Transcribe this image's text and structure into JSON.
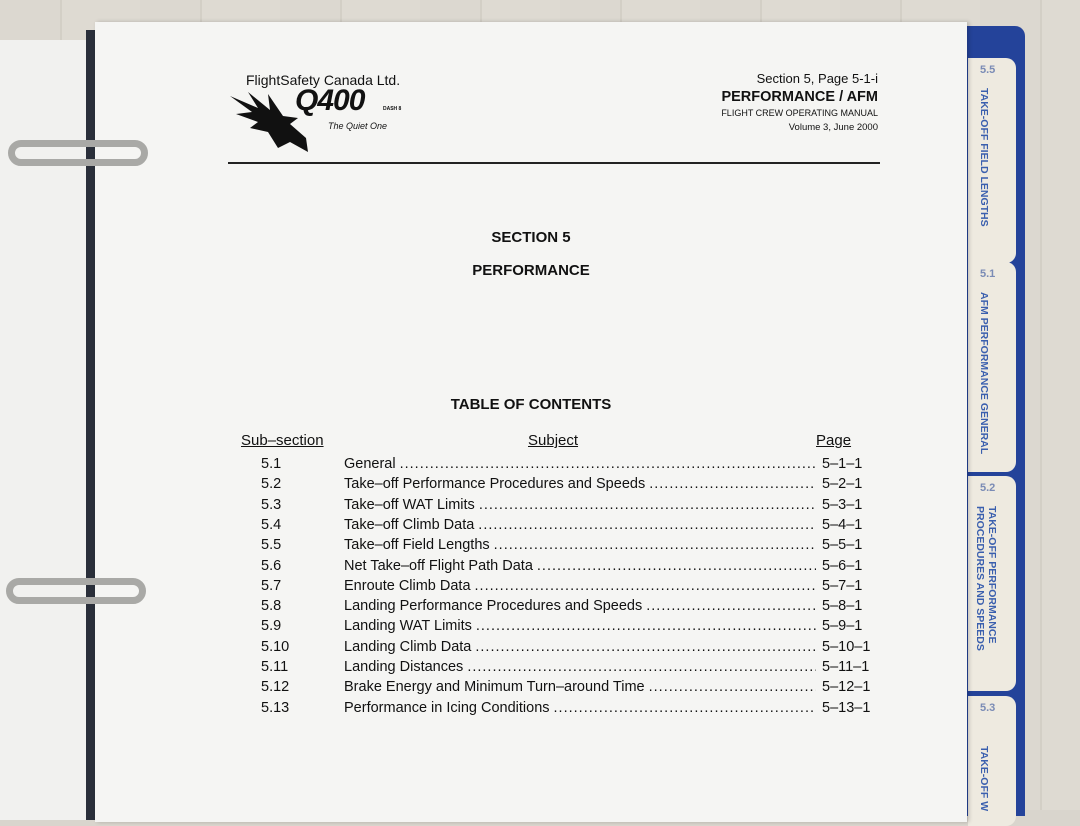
{
  "header": {
    "company": "FlightSafety Canada Ltd.",
    "logo_text": "Q400",
    "logo_sub": "DASH 8",
    "tagline": "The Quiet One",
    "section_page": "Section 5, Page 5-1-i",
    "title": "PERFORMANCE / AFM",
    "manual": "FLIGHT CREW OPERATING MANUAL",
    "volume": "Volume 3, June 2000"
  },
  "section": "SECTION 5",
  "section_title": "PERFORMANCE",
  "toc_title": "TABLE OF CONTENTS",
  "columns": {
    "sub": "Sub–section",
    "subject": "Subject",
    "page": "Page"
  },
  "rows": [
    {
      "n": "5.1",
      "s": "General",
      "p": "5–1–1"
    },
    {
      "n": "5.2",
      "s": "Take–off Performance Procedures and Speeds",
      "p": "5–2–1"
    },
    {
      "n": "5.3",
      "s": "Take–off WAT Limits",
      "p": "5–3–1"
    },
    {
      "n": "5.4",
      "s": "Take–off Climb Data",
      "p": "5–4–1"
    },
    {
      "n": "5.5",
      "s": "Take–off Field Lengths",
      "p": "5–5–1"
    },
    {
      "n": "5.6",
      "s": "Net Take–off Flight Path Data",
      "p": "5–6–1"
    },
    {
      "n": "5.7",
      "s": "Enroute Climb Data",
      "p": "5–7–1"
    },
    {
      "n": "5.8",
      "s": "Landing Performance Procedures and Speeds",
      "p": "5–8–1"
    },
    {
      "n": "5.9",
      "s": "Landing WAT Limits",
      "p": "5–9–1"
    },
    {
      "n": "5.10",
      "s": "Landing Climb Data",
      "p": "5–10–1"
    },
    {
      "n": "5.11",
      "s": "Landing Distances",
      "p": "5–11–1"
    },
    {
      "n": "5.12",
      "s": "Brake Energy and Minimum Turn–around Time",
      "p": "5–12–1"
    },
    {
      "n": "5.13",
      "s": "Performance in Icing Conditions",
      "p": "5–13–1"
    }
  ],
  "tabs": [
    {
      "num": "5.5",
      "label": "TAKE-OFF FIELD LENGTHS"
    },
    {
      "num": "5.1",
      "label": "AFM PERFORMANCE GENERAL"
    },
    {
      "num": "5.2",
      "label": "TAKE-OFF PERFORMANCE\nPROCEDURES AND SPEEDS"
    },
    {
      "num": "5.3",
      "label": "TAKE-OFF W"
    }
  ],
  "colors": {
    "binder": "#24439a",
    "tab_text": "#3a5fae",
    "paper": "#f5f5f3"
  }
}
